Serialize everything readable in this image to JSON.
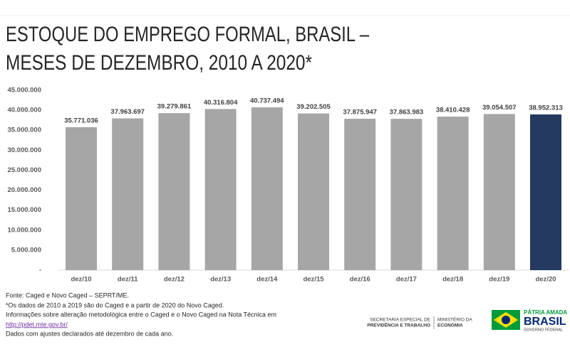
{
  "chart_data": {
    "type": "bar",
    "title": [
      "ESTOQUE DO EMPREGO FORMAL, BRASIL –",
      "MESES DE DEZEMBRO, 2010 A 2020*"
    ],
    "categories": [
      "dez/10",
      "dez/11",
      "dez/12",
      "dez/13",
      "dez/14",
      "dez/15",
      "dez/16",
      "dez/17",
      "dez/18",
      "dez/19",
      "dez/20"
    ],
    "values": [
      35771036,
      37963697,
      39279861,
      40316804,
      40737494,
      39202505,
      37875947,
      37863983,
      38410428,
      39054507,
      38952313
    ],
    "value_labels": [
      "35.771.036",
      "37.963.697",
      "39.279.861",
      "40.316.804",
      "40.737.494",
      "39.202.505",
      "37.875.947",
      "37.863.983",
      "38.410.428",
      "39.054.507",
      "38.952.313"
    ],
    "colors": [
      "#a6a6a6",
      "#a6a6a6",
      "#a6a6a6",
      "#a6a6a6",
      "#a6a6a6",
      "#a6a6a6",
      "#a6a6a6",
      "#a6a6a6",
      "#a6a6a6",
      "#a6a6a6",
      "#243a5e"
    ],
    "ylim": [
      0,
      45000000
    ],
    "yticks": [
      {
        "value": 0,
        "label": "-"
      },
      {
        "value": 5000000,
        "label": "5.000.000"
      },
      {
        "value": 10000000,
        "label": "10.000.000"
      },
      {
        "value": 15000000,
        "label": "15.000.000"
      },
      {
        "value": 20000000,
        "label": "20.000.000"
      },
      {
        "value": 25000000,
        "label": "25.000.000"
      },
      {
        "value": 30000000,
        "label": "30.000.000"
      },
      {
        "value": 35000000,
        "label": "35.000.000"
      },
      {
        "value": 40000000,
        "label": "40.000.000"
      },
      {
        "value": 45000000,
        "label": "45.000.000"
      }
    ],
    "grid": false
  },
  "footer": {
    "notes": [
      "Fonte: Caged e Novo Caged – SEPRT/ME.",
      "*Os dados de 2010 a 2019 são do Caged e a partir de 2020 do Novo Caged.",
      "Informações sobre alteração metodológica entre o Caged e o Novo Caged na Nota Técnica em"
    ],
    "link": "http://pdet.mte.gov.br/",
    "last_note": "Dados com ajustes declarados até dezembro de cada ano.",
    "logos": {
      "secretaria": [
        "SECRETARIA ESPECIAL DE",
        "PREVIDÊNCIA E TRABALHO"
      ],
      "ministerio": [
        "MINISTÉRIO DA",
        "ECONOMIA"
      ],
      "patria": "PÁTRIA AMADA",
      "brasil": "BRASIL",
      "governo": "GOVERNO FEDERAL"
    }
  }
}
